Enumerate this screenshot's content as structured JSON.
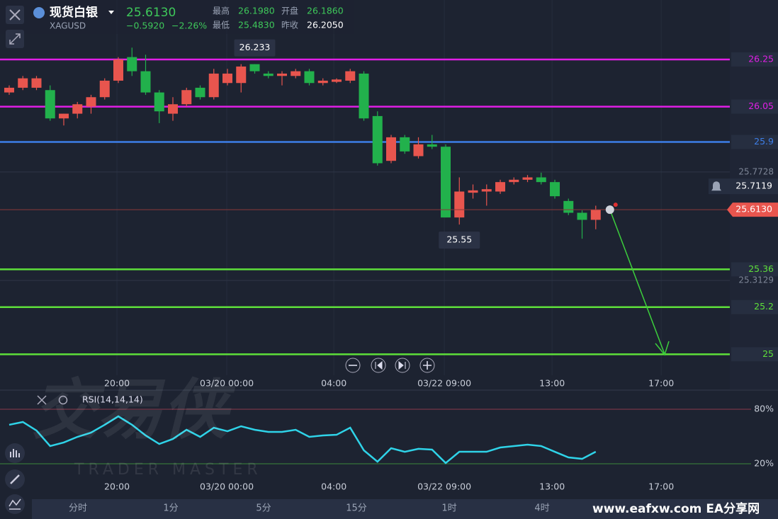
{
  "header": {
    "name": "现货白银",
    "symbol": "XAGUSD",
    "price": "25.6130",
    "change": "−0.5920",
    "change_pct": "−2.26%",
    "stats": [
      {
        "label": "最高",
        "value": "26.1980"
      },
      {
        "label": "开盘",
        "value": "26.1860"
      },
      {
        "label": "最低",
        "value": "25.4830"
      },
      {
        "label": "昨收",
        "value": "26.2050"
      }
    ]
  },
  "chart_data": {
    "type": "candlestick",
    "open": [
      26.11,
      26.13,
      26.13,
      26.12,
      26.0,
      26.02,
      26.05,
      26.09,
      26.16,
      26.26,
      26.2,
      26.11,
      26.02,
      26.06,
      26.13,
      26.09,
      26.15,
      26.15,
      26.23,
      26.19,
      26.18,
      26.18,
      26.2,
      26.15,
      26.155,
      26.16,
      26.19,
      26.01,
      25.82,
      25.92,
      25.84,
      25.89,
      25.88,
      25.58,
      25.685,
      25.69,
      25.69,
      25.73,
      25.74,
      25.75,
      25.73,
      25.65,
      25.6,
      25.57
    ],
    "high": [
      26.14,
      26.18,
      26.18,
      26.14,
      26.02,
      26.07,
      26.1,
      26.17,
      26.26,
      26.3,
      26.27,
      26.12,
      26.09,
      26.13,
      26.14,
      26.21,
      26.21,
      26.23,
      26.23,
      26.2,
      26.2,
      26.21,
      26.21,
      26.17,
      26.17,
      26.21,
      26.2,
      26.03,
      25.93,
      25.93,
      25.92,
      25.93,
      25.89,
      25.75,
      25.72,
      25.72,
      25.74,
      25.75,
      25.76,
      25.77,
      25.74,
      25.66,
      25.61,
      25.63
    ],
    "low": [
      26.1,
      26.12,
      26.12,
      25.99,
      25.97,
      26.0,
      26.02,
      26.08,
      26.15,
      26.18,
      26.1,
      25.98,
      25.99,
      26.05,
      26.08,
      26.08,
      26.14,
      26.11,
      26.19,
      26.17,
      26.14,
      26.17,
      26.14,
      26.14,
      26.15,
      26.15,
      25.99,
      25.8,
      25.81,
      25.85,
      25.83,
      25.87,
      25.58,
      25.55,
      25.66,
      25.63,
      25.68,
      25.72,
      25.73,
      25.72,
      25.66,
      25.59,
      25.49,
      25.53
    ],
    "close": [
      26.13,
      26.17,
      26.17,
      26.0,
      26.02,
      26.06,
      26.09,
      26.16,
      26.25,
      26.2,
      26.11,
      26.03,
      26.06,
      26.12,
      26.09,
      26.19,
      26.19,
      26.22,
      26.2,
      26.18,
      26.19,
      26.2,
      26.15,
      26.16,
      26.165,
      26.2,
      26.0,
      25.81,
      25.92,
      25.86,
      25.89,
      25.88,
      25.58,
      25.69,
      25.695,
      25.7,
      25.73,
      25.74,
      25.75,
      25.73,
      25.67,
      25.6,
      25.57,
      25.613
    ],
    "up_color": "#e8554e",
    "down_color": "#22b14c",
    "xlim": [
      -0.675,
      52.83
    ],
    "ylim": [
      24.911,
      26.502
    ],
    "xticks": [
      {
        "value": 7.9,
        "label": "20:00"
      },
      {
        "value": 15.95,
        "label": "03/20 00:00"
      },
      {
        "value": 23.8,
        "label": "04:00"
      },
      {
        "value": 31.9,
        "label": "03/22 09:00"
      },
      {
        "value": 39.8,
        "label": "13:00"
      },
      {
        "value": 47.8,
        "label": "17:00"
      }
    ],
    "levels": [
      {
        "value": 26.25,
        "color": "#e11ee6"
      },
      {
        "value": 26.05,
        "color": "#e11ee6"
      },
      {
        "value": 25.9,
        "color": "#3d7ee8"
      },
      {
        "value": 25.36,
        "color": "#5ee03a"
      },
      {
        "value": 25.2,
        "color": "#5ee03a"
      },
      {
        "value": 25,
        "color": "#5ee03a"
      }
    ],
    "axis_labels": [
      25.7728,
      25.3129
    ],
    "alert_price": 25.7119,
    "last_price": {
      "value": 25.613,
      "label": "25.6130"
    },
    "high_marker": {
      "x": 18,
      "value": 26.233
    },
    "low_marker": {
      "x": 33,
      "value": 25.55
    },
    "rsi": {
      "label": "RSI(14,14,14)",
      "color": "#2fd3e8",
      "ylim": [
        -19,
        99.5
      ],
      "yticks": [
        {
          "value": 80,
          "label": "80%"
        },
        {
          "value": 20,
          "label": "20%"
        }
      ],
      "values": [
        62.9,
        66,
        56.6,
        39.5,
        43.4,
        49.6,
        54.3,
        62.9,
        72.2,
        62.9,
        51.2,
        41.8,
        47.3,
        57.4,
        49.6,
        59.7,
        55.8,
        61.3,
        57.4,
        55.1,
        55.1,
        57.4,
        49.6,
        51.2,
        51.9,
        59.7,
        34.8,
        22.3,
        37.1,
        33.2,
        36.4,
        35.6,
        20.8,
        33.2,
        33.2,
        33.2,
        37.9,
        39.5,
        41,
        39.5,
        33.2,
        27,
        25.4,
        33.2
      ]
    }
  },
  "watermark": {
    "title": "交易侠",
    "subtitle": "TRADER MASTER"
  },
  "tabs": [
    "分时",
    "1分",
    "5分",
    "15分",
    "1时",
    "4时"
  ],
  "site": "www.eafxw.com  EA分享网"
}
